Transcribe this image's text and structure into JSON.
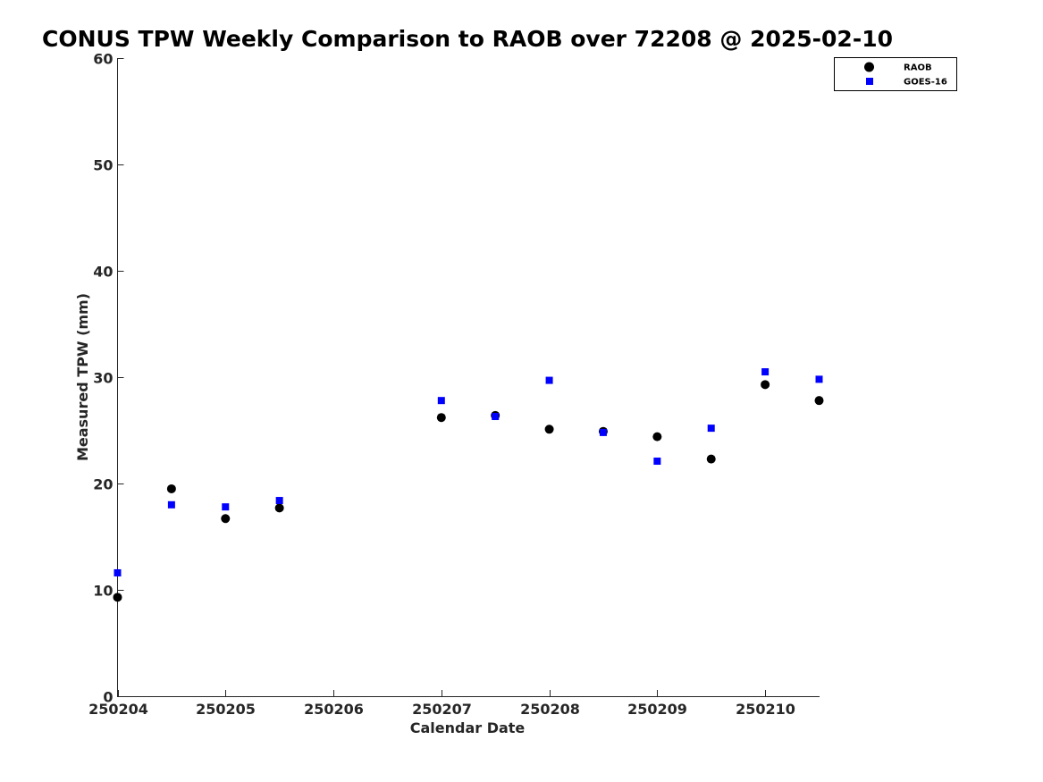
{
  "chart_data": {
    "type": "scatter",
    "title": "CONUS TPW Weekly Comparison to RAOB over 72208 @ 2025-02-10",
    "xlabel": "Calendar Date",
    "ylabel": "Measured TPW (mm)",
    "x_tick_labels": [
      "250204",
      "250205",
      "250206",
      "250207",
      "250208",
      "250209",
      "250210"
    ],
    "x_tick_values": [
      250204,
      250205,
      250206,
      250207,
      250208,
      250209,
      250210
    ],
    "xlim": [
      250204,
      250210.5
    ],
    "ylim": [
      0,
      60
    ],
    "y_ticks": [
      0,
      10,
      20,
      30,
      40,
      50,
      60
    ],
    "grid": false,
    "legend_position": "top-right",
    "series": [
      {
        "name": "RAOB",
        "marker": "circle",
        "color": "#000000",
        "x": [
          250204,
          250204.5,
          250205,
          250205.5,
          250207,
          250207.5,
          250208,
          250208.5,
          250209,
          250209.5,
          250210,
          250210.5
        ],
        "y": [
          9.3,
          19.5,
          16.7,
          17.7,
          26.2,
          26.4,
          25.1,
          24.9,
          24.4,
          22.3,
          29.3,
          27.8
        ]
      },
      {
        "name": "GOES-16",
        "marker": "square",
        "color": "#0000ff",
        "x": [
          250204,
          250204.5,
          250205,
          250205.5,
          250207,
          250207.5,
          250208,
          250208.5,
          250209,
          250209.5,
          250210,
          250210.5
        ],
        "y": [
          11.6,
          18.0,
          17.8,
          18.4,
          27.8,
          26.3,
          29.7,
          24.8,
          22.1,
          25.2,
          30.5,
          29.8
        ]
      }
    ]
  }
}
